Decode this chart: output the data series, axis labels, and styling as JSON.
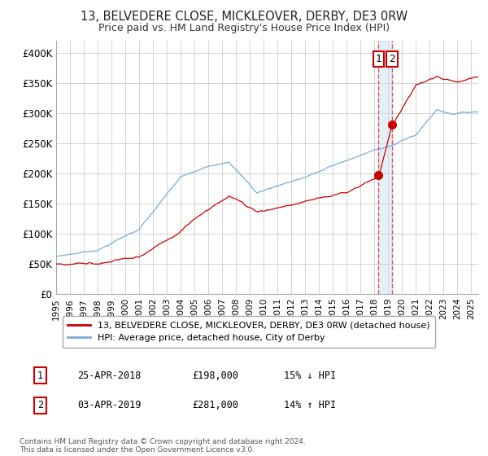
{
  "title": "13, BELVEDERE CLOSE, MICKLEOVER, DERBY, DE3 0RW",
  "subtitle": "Price paid vs. HM Land Registry's House Price Index (HPI)",
  "ylabel_ticks": [
    "£0",
    "£50K",
    "£100K",
    "£150K",
    "£200K",
    "£250K",
    "£300K",
    "£350K",
    "£400K"
  ],
  "ytick_values": [
    0,
    50000,
    100000,
    150000,
    200000,
    250000,
    300000,
    350000,
    400000
  ],
  "ylim": [
    0,
    420000
  ],
  "sale1_date": "25-APR-2018",
  "sale1_price": 198000,
  "sale1_pct": "15%",
  "sale1_dir": "↓",
  "sale2_date": "03-APR-2019",
  "sale2_price": 281000,
  "sale2_pct": "14%",
  "sale2_dir": "↑",
  "legend1": "13, BELVEDERE CLOSE, MICKLEOVER, DERBY, DE3 0RW (detached house)",
  "legend2": "HPI: Average price, detached house, City of Derby",
  "footnote": "Contains HM Land Registry data © Crown copyright and database right 2024.\nThis data is licensed under the Open Government Licence v3.0.",
  "line1_color": "#cc0000",
  "line2_color": "#7aaddc",
  "vline_color": "#dd4444",
  "box_color": "#cc0000",
  "sale1_x": 2018.3,
  "sale2_x": 2019.25,
  "xmin": 1995.0,
  "xmax": 2025.5
}
